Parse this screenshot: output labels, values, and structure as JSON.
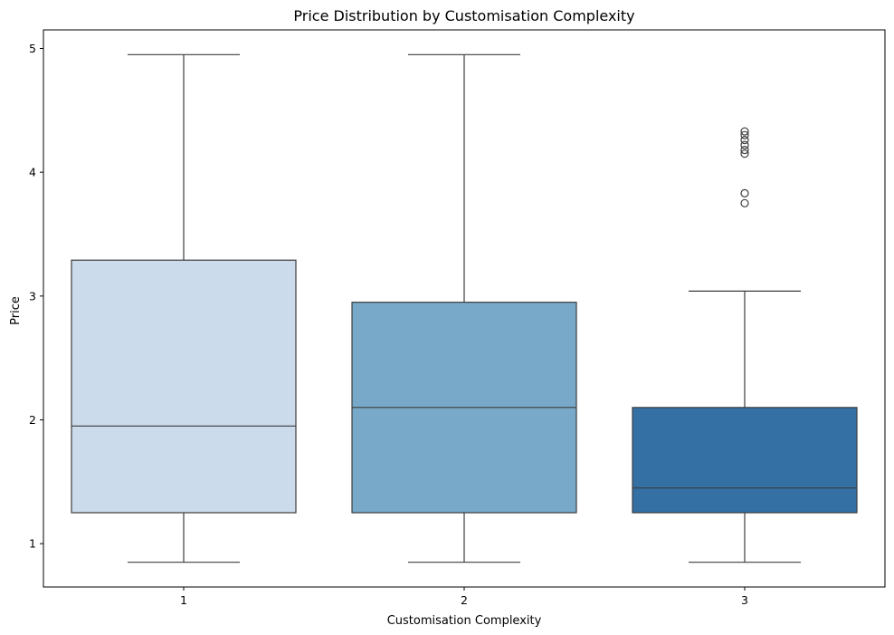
{
  "chart_data": {
    "type": "box",
    "title": "Price Distribution by Customisation Complexity",
    "xlabel": "Customisation Complexity",
    "ylabel": "Price",
    "ylim": [
      0.65,
      5.15
    ],
    "yticks": [
      1,
      2,
      3,
      4,
      5
    ],
    "grid": false,
    "categories": [
      "1",
      "2",
      "3"
    ],
    "boxes": [
      {
        "category": "1",
        "whisker_low": 0.85,
        "q1": 1.25,
        "median": 1.95,
        "q3": 3.29,
        "whisker_high": 4.95,
        "outliers": [],
        "color": "#cbdbeb"
      },
      {
        "category": "2",
        "whisker_low": 0.85,
        "q1": 1.25,
        "median": 2.1,
        "q3": 2.95,
        "whisker_high": 4.95,
        "outliers": [],
        "color": "#78a9c9"
      },
      {
        "category": "3",
        "whisker_low": 0.85,
        "q1": 1.25,
        "median": 1.45,
        "q3": 2.1,
        "whisker_high": 3.04,
        "outliers": [
          3.75,
          3.83,
          4.15,
          4.18,
          4.22,
          4.26,
          4.3,
          4.33
        ],
        "color": "#3470a4"
      }
    ]
  }
}
